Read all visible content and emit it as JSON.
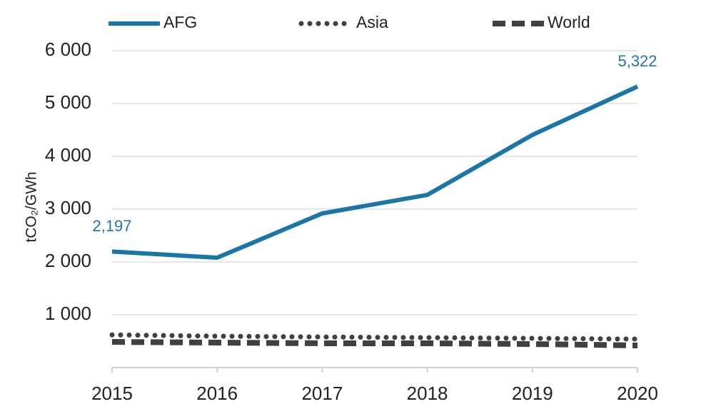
{
  "chart_data": {
    "type": "line",
    "y_label": "tCO₂/GWh",
    "categories": [
      "2015",
      "2016",
      "2017",
      "2018",
      "2019",
      "2020"
    ],
    "series": [
      {
        "name": "AFG",
        "color": "#1a75a8",
        "style": "solid",
        "values": [
          2197,
          2081,
          2919,
          3270,
          4405,
          5322
        ],
        "value_labels": [
          "2,197",
          null,
          null,
          null,
          null,
          "5,322"
        ],
        "label_color": "#1f74b8"
      },
      {
        "name": "Asia",
        "color": "#404040",
        "style": "dotted",
        "values": [
          620,
          595,
          580,
          567,
          554,
          540
        ]
      },
      {
        "name": "World",
        "color": "#404040",
        "style": "dashed",
        "values": [
          486,
          473,
          460,
          460,
          446,
          419
        ]
      }
    ],
    "ylim": [
      0,
      6000
    ],
    "yticks": [
      {
        "value": 1000,
        "label": "1 000"
      },
      {
        "value": 2000,
        "label": "2 000"
      },
      {
        "value": 3000,
        "label": "3 000"
      },
      {
        "value": 4000,
        "label": "4 000"
      },
      {
        "value": 5000,
        "label": "5 000"
      },
      {
        "value": 6000,
        "label": "6 000"
      }
    ],
    "grid": true,
    "legend": "top"
  }
}
